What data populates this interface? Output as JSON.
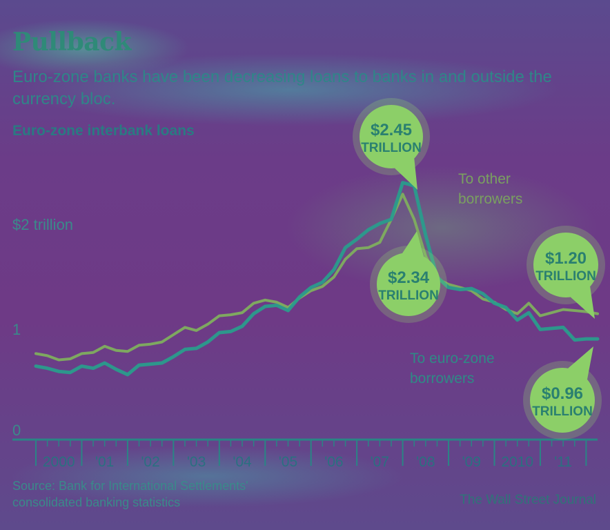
{
  "header": {
    "title": "Pullback",
    "subtitle": "Euro-zone banks have been decreasing loans to banks in and outside the currency bloc.",
    "chart_label": "Euro-zone interbank loans"
  },
  "footer": {
    "source": "Source: Bank for International Settlements' consolidated banking statistics",
    "credit": "The Wall Street Journal"
  },
  "colors": {
    "euro_line": "#2a9c8c",
    "other_line": "#7fae5e",
    "axis": "#2a8585",
    "bubble": "#8ccf68"
  },
  "chart_data": {
    "type": "line",
    "title": "Pullback",
    "subtitle": "Euro-zone banks have been decreasing loans to banks in and outside the currency bloc.",
    "ylabel": "Euro-zone interbank loans",
    "ylim": [
      0,
      2.5
    ],
    "xlim": [
      1999.5,
      2011.75
    ],
    "y_ticks": [
      {
        "value": 0,
        "label": "0"
      },
      {
        "value": 1,
        "label": "1"
      },
      {
        "value": 2,
        "label": "$2 trillion"
      }
    ],
    "x_ticks": [
      {
        "value": 2000,
        "label": "2000"
      },
      {
        "value": 2001,
        "label": "'01"
      },
      {
        "value": 2002,
        "label": "'02"
      },
      {
        "value": 2003,
        "label": "'03"
      },
      {
        "value": 2004,
        "label": "'04"
      },
      {
        "value": 2005,
        "label": "'05"
      },
      {
        "value": 2006,
        "label": "'06"
      },
      {
        "value": 2007,
        "label": "'07"
      },
      {
        "value": 2008,
        "label": "'08"
      },
      {
        "value": 2009,
        "label": "'09"
      },
      {
        "value": 2010,
        "label": "2010"
      },
      {
        "value": 2011,
        "label": "'11"
      }
    ],
    "x": [
      1999.5,
      1999.75,
      2000.0,
      2000.25,
      2000.5,
      2000.75,
      2001.0,
      2001.25,
      2001.5,
      2001.75,
      2002.0,
      2002.25,
      2002.5,
      2002.75,
      2003.0,
      2003.25,
      2003.5,
      2003.75,
      2004.0,
      2004.25,
      2004.5,
      2004.75,
      2005.0,
      2005.25,
      2005.5,
      2005.75,
      2006.0,
      2006.25,
      2006.5,
      2006.75,
      2007.0,
      2007.25,
      2007.5,
      2007.75,
      2008.0,
      2008.25,
      2008.5,
      2008.75,
      2009.0,
      2009.25,
      2009.5,
      2009.75,
      2010.0,
      2010.25,
      2010.5,
      2010.75,
      2011.0,
      2011.25,
      2011.5,
      2011.75
    ],
    "series": [
      {
        "name": "To other borrowers",
        "values": [
          0.82,
          0.8,
          0.76,
          0.77,
          0.82,
          0.83,
          0.89,
          0.85,
          0.84,
          0.9,
          0.91,
          0.93,
          1.0,
          1.07,
          1.04,
          1.1,
          1.18,
          1.19,
          1.21,
          1.3,
          1.33,
          1.31,
          1.26,
          1.35,
          1.42,
          1.46,
          1.55,
          1.72,
          1.82,
          1.83,
          1.88,
          2.1,
          2.34,
          2.1,
          1.75,
          1.53,
          1.48,
          1.45,
          1.42,
          1.34,
          1.31,
          1.24,
          1.2,
          1.3,
          1.18,
          1.21,
          1.24,
          1.23,
          1.22,
          1.2
        ]
      },
      {
        "name": "To euro-zone borrowers",
        "values": [
          0.7,
          0.68,
          0.65,
          0.64,
          0.7,
          0.68,
          0.73,
          0.67,
          0.62,
          0.71,
          0.72,
          0.73,
          0.79,
          0.86,
          0.87,
          0.93,
          1.02,
          1.03,
          1.08,
          1.2,
          1.27,
          1.28,
          1.23,
          1.36,
          1.45,
          1.5,
          1.62,
          1.83,
          1.91,
          2.0,
          2.06,
          2.1,
          2.45,
          2.42,
          1.95,
          1.55,
          1.45,
          1.43,
          1.44,
          1.39,
          1.3,
          1.26,
          1.14,
          1.21,
          1.05,
          1.06,
          1.07,
          0.95,
          0.96,
          0.96
        ]
      }
    ],
    "annotations": [
      {
        "value": "$2.45",
        "unit": "TRILLION",
        "x": 2007.5,
        "y": 2.45,
        "series": "To euro-zone borrowers"
      },
      {
        "value": "$2.34",
        "unit": "TRILLION",
        "x": 2007.5,
        "y": 2.34,
        "series": "To other borrowers"
      },
      {
        "value": "$1.20",
        "unit": "TRILLION",
        "x": 2011.75,
        "y": 1.2,
        "series": "To other borrowers"
      },
      {
        "value": "$0.96",
        "unit": "TRILLION",
        "x": 2011.75,
        "y": 0.96,
        "series": "To euro-zone borrowers"
      }
    ],
    "series_labels": [
      {
        "lines": [
          "To other",
          "borrowers"
        ],
        "series": "To other borrowers"
      },
      {
        "lines": [
          "To euro-zone",
          "borrowers"
        ],
        "series": "To euro-zone borrowers"
      }
    ],
    "grid": false,
    "legend": "none"
  }
}
